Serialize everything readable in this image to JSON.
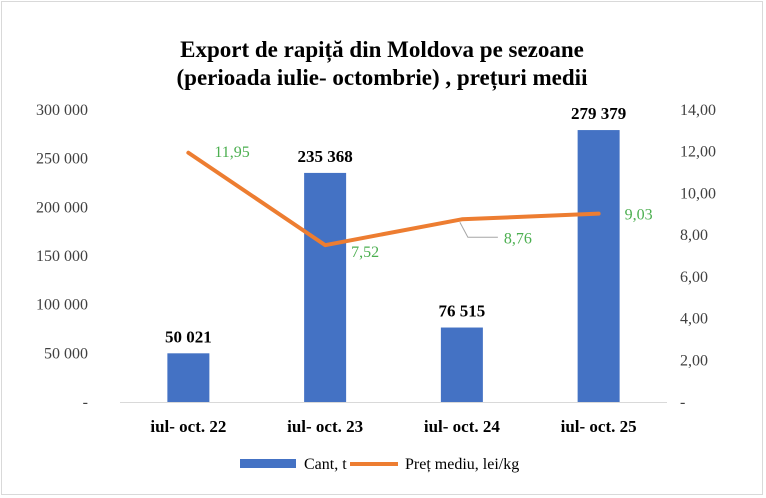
{
  "chart_data": {
    "type": "bar+line",
    "title": "Export de rapiță din  Moldova pe sezoane",
    "subtitle": "(perioada iulie- octombrie) , prețuri medii",
    "categories": [
      "iul- oct. 22",
      "iul- oct. 23",
      "iul- oct. 24",
      "iul- oct. 25"
    ],
    "series": [
      {
        "name": "Cant, t",
        "type": "bar",
        "axis": "left",
        "color": "#4472c4",
        "values": [
          50021,
          235368,
          76515,
          279379
        ],
        "labels": [
          "50 021",
          "235 368",
          "76 515",
          "279 379"
        ]
      },
      {
        "name": "Preț mediu, lei/kg",
        "type": "line",
        "axis": "right",
        "color": "#ed7d31",
        "values": [
          11.95,
          7.52,
          8.76,
          9.03
        ],
        "labels": [
          "11,95",
          "7,52",
          "8,76",
          "9,03"
        ]
      }
    ],
    "y_left": {
      "min": 0,
      "max": 300000,
      "ticks": [
        0,
        50000,
        100000,
        150000,
        200000,
        250000,
        300000
      ],
      "tick_labels": [
        "-",
        "50 000",
        "100 000",
        "150 000",
        "200 000",
        "250 000",
        "300 000"
      ]
    },
    "y_right": {
      "min": 0,
      "max": 14,
      "ticks": [
        0,
        2,
        4,
        6,
        8,
        10,
        12,
        14
      ],
      "tick_labels": [
        "-",
        "2,00",
        "4,00",
        "6,00",
        "8,00",
        "10,00",
        "12,00",
        "14,00"
      ]
    },
    "grid": false,
    "legend_position": "bottom",
    "label_color": "#4caf50"
  }
}
